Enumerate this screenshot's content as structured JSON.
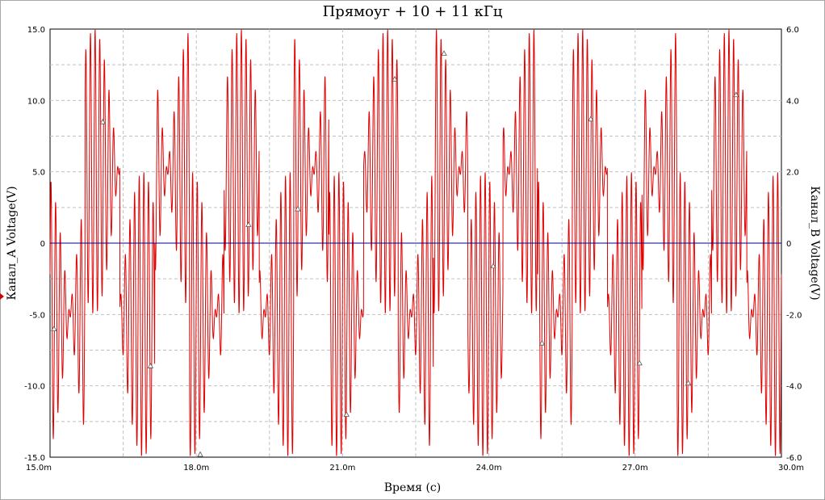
{
  "chart_data": {
    "type": "line",
    "title": "Прямоуг + 10 + 11 кГц",
    "xlabel": "Время (с)",
    "ylabel": "Канал_A Voltage(V)",
    "ylabel_right": "Канал_B Voltage(V)",
    "xlim": [
      0.015,
      0.03
    ],
    "ylim": [
      -15.0,
      15.0
    ],
    "ylim_right": [
      -6.0,
      6.0
    ],
    "x_ticks": [
      "15.0m",
      "18.0m",
      "21.0m",
      "24.0m",
      "27.0m",
      "30.0m"
    ],
    "y_ticks_left": [
      "15.0",
      "10.0",
      "5.0",
      "0",
      "-5.0",
      "-10.0",
      "-15.0"
    ],
    "y_ticks_right": [
      "6.0",
      "4.0",
      "2.0",
      "0",
      "-2.0",
      "-4.0",
      "-6.0"
    ],
    "grid": true,
    "colors": {
      "series": "#e00000",
      "zero_line": "#00008b",
      "grid": "#c0c0c0"
    },
    "series": [
      {
        "signal": "square wave + 10 kHz + 11 kHz sines",
        "x_units": "s",
        "square": {
          "amplitude": 5.0,
          "start_value": -5.0,
          "transitions": [
            0.01572,
            0.01643,
            0.01715,
            0.01786,
            0.01857,
            0.01929,
            0.02,
            0.02072,
            0.02143,
            0.02214,
            0.02286,
            0.02357,
            0.02429,
            0.025,
            0.02571,
            0.02643,
            0.02714,
            0.02786,
            0.02857,
            0.02929
          ]
        },
        "sine_1": {
          "amplitude": 5.0,
          "frequency": 10000
        },
        "sine_2": {
          "amplitude": 5.0,
          "frequency": 11000
        },
        "marker_points": [
          [
            0.01508,
            -6.0
          ],
          [
            0.01608,
            8.5
          ],
          [
            0.01706,
            -8.6
          ],
          [
            0.01808,
            -14.8
          ],
          [
            0.01907,
            1.3
          ],
          [
            0.02008,
            2.4
          ],
          [
            0.02108,
            -12.0
          ],
          [
            0.02207,
            11.5
          ],
          [
            0.02308,
            13.3
          ],
          [
            0.02409,
            -1.6
          ],
          [
            0.02509,
            -7.0
          ],
          [
            0.02609,
            8.7
          ],
          [
            0.02709,
            -8.4
          ],
          [
            0.02809,
            -9.8
          ],
          [
            0.02907,
            10.4
          ]
        ]
      }
    ]
  }
}
